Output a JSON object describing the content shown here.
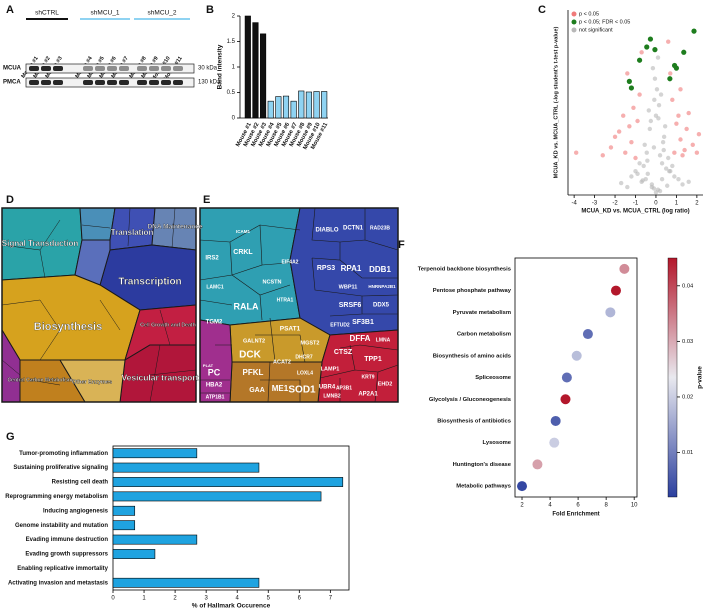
{
  "blot": {
    "panel_label": "A",
    "groups": [
      {
        "name": "shCTRL",
        "color": "#111111"
      },
      {
        "name": "shMCU_1",
        "color": "#8fd3f2"
      },
      {
        "name": "shMCU_2",
        "color": "#8fd3f2"
      }
    ],
    "lanes": [
      "Mouse #1",
      "Mouse #2",
      "Mouse #3",
      "Mouse #4",
      "Mouse #5",
      "Mouse #6",
      "Mouse #7",
      "Mouse #8",
      "Mouse #9",
      "Mouse #10",
      "Mouse #11"
    ],
    "rows": [
      {
        "name": "MCUA",
        "marker": "30 kDa"
      },
      {
        "name": "PMCA",
        "marker": "130 kDa"
      }
    ]
  },
  "pathway_map": {
    "panel_label": "D",
    "labels": [
      "Signal Transduction",
      "Translation",
      "DNA Maintenance",
      "Transcription",
      "Biosynthesis",
      "Cell Growth and Death",
      "Vesicular transport",
      "Central Carbon Metabolism",
      "Other Enzymes"
    ]
  },
  "protein_map": {
    "panel_label": "E",
    "labels": [
      "IRS2",
      "CRKL",
      "LAMC1",
      "RALA",
      "NCSTN",
      "ICAM1",
      "TGM2",
      "HTRA1",
      "EIF4A2",
      "DIABLO",
      "DCTN1",
      "RAD23B",
      "RPS3",
      "RPA1",
      "DDB1",
      "WBP11",
      "HNRNPA2B1",
      "SRSF6",
      "DDX5",
      "SF3B1",
      "EFTUD2",
      "DFFA",
      "LMNA",
      "CTSZ",
      "TPP1",
      "LAMP1",
      "UBR4",
      "AP3B1",
      "KRT9",
      "EHD2",
      "AP2A1",
      "LMNB2",
      "MGST2",
      "PSAT1",
      "DCK",
      "PC",
      "PFKL",
      "GAA",
      "ME1",
      "SOD1",
      "LOXL4",
      "DHCR7",
      "ACAT2",
      "GALNT2",
      "HBA2",
      "ATP1B1",
      "PLAT"
    ]
  },
  "chart_data": [
    {
      "type": "bar",
      "panel_label": "B",
      "y_label": "Band intensity",
      "categories": [
        "Mouse #1",
        "Mouse #2",
        "Mouse #3",
        "Mouse #4",
        "Mouse #5",
        "Mouse #6",
        "Mouse #7",
        "Mouse #8",
        "Mouse #9",
        "Mouse #10",
        "Mouse #11"
      ],
      "values": [
        2.0,
        1.87,
        1.65,
        0.33,
        0.42,
        0.43,
        0.33,
        0.53,
        0.51,
        0.52,
        0.52
      ],
      "colors": [
        "#111111",
        "#111111",
        "#111111",
        "#8fd3f2",
        "#8fd3f2",
        "#8fd3f2",
        "#8fd3f2",
        "#8fd3f2",
        "#8fd3f2",
        "#8fd3f2",
        "#8fd3f2"
      ],
      "ylim": [
        0,
        2
      ],
      "yticks": [
        0,
        0.5,
        1,
        1.5,
        2
      ]
    },
    {
      "type": "scatter",
      "panel_label": "C",
      "x_label": "MCUA_KD vs. MCUA_CTRL (log ratio)",
      "y_label": "MCUA_KD vs. MCUA_CTRL (-log student's t-test p-value)",
      "legend": "upper left",
      "xlim": [
        -4.3,
        2.3
      ],
      "xticks": [
        -4,
        -3,
        -2,
        -1,
        0,
        1,
        2
      ],
      "ylim": [
        0,
        7
      ],
      "series": [
        {
          "name": "p < 0.05",
          "color": "#f07a7a",
          "x": [
            -1.5,
            -1.2,
            -1.8,
            -2.2,
            -0.9,
            -1.1,
            -2.6,
            -1.4,
            -0.7,
            -3.9,
            -1.0,
            -1.6,
            -2.0,
            -0.8,
            -1.3,
            0.9,
            1.2,
            1.5,
            1.1,
            0.8,
            1.8,
            2.1,
            1.3,
            0.7,
            1.0,
            1.6,
            1.4,
            0.6,
            2.0,
            1.2
          ],
          "values": [
            1.6,
            2.0,
            2.4,
            1.8,
            2.8,
            3.3,
            1.5,
            4.6,
            5.4,
            1.6,
            1.4,
            3.0,
            2.2,
            3.8,
            2.6,
            1.6,
            2.1,
            2.5,
            3.0,
            3.6,
            1.9,
            2.3,
            1.5,
            4.6,
            2.7,
            3.1,
            1.7,
            5.8,
            1.6,
            4.0
          ]
        },
        {
          "name": "p < 0.05; FDR < 0.05",
          "color": "#1e7d1e",
          "x": [
            1.86,
            1.36,
            0.91,
            1.0,
            0.68,
            -0.27,
            -0.45,
            -0.05,
            -1.3,
            -1.2,
            -0.8
          ],
          "values": [
            6.2,
            5.4,
            4.9,
            4.8,
            4.4,
            5.9,
            5.6,
            5.5,
            4.3,
            4.05,
            5.1
          ]
        },
        {
          "name": "not significant",
          "color": "#b8b8b8",
          "x": [
            0.1,
            -0.2,
            0.3,
            -0.4,
            0.5,
            -0.6,
            0.2,
            -0.1,
            0.7,
            -0.8,
            0.4,
            -0.3,
            0.9,
            -1.0,
            0.0,
            0.15,
            -0.25,
            0.35,
            -0.45,
            0.6,
            -0.7,
            1.1,
            -1.2,
            0.05,
            -0.05,
            0.25,
            -0.35,
            0.45,
            -0.55,
            0.8,
            -0.9,
            1.3,
            -1.4,
            0.1,
            -0.15,
            0.3,
            -0.5,
            0.65,
            -0.2,
            0.0,
            0.2,
            -0.1,
            1.6,
            -1.7,
            0.55,
            -0.65,
            0.12,
            -0.08,
            0.38,
            -0.42
          ],
          "values": [
            0.2,
            0.4,
            0.6,
            0.8,
            1.0,
            1.1,
            1.5,
            1.8,
            0.9,
            1.2,
            2.2,
            2.5,
            0.7,
            0.9,
            3.0,
            3.4,
            2.8,
            2.0,
            1.6,
            1.4,
            0.5,
            0.6,
            0.7,
            4.0,
            4.4,
            3.8,
            3.2,
            2.6,
            1.9,
            1.1,
            0.8,
            0.4,
            0.3,
            5.2,
            4.8,
            1.2,
            0.6,
            0.9,
            0.3,
            0.1,
            0.15,
            0.25,
            0.5,
            0.45,
            0.35,
            0.55,
            2.9,
            3.6,
            1.7,
            1.3
          ]
        }
      ]
    },
    {
      "type": "dot",
      "panel_label": "F",
      "x_label": "Fold Enrichment",
      "categories": [
        "Terpenoid backbone biosynthesis",
        "Pentose phosphate pathway",
        "Pyruvate metabolism",
        "Carbon metabolism",
        "Biosynthesis of amino acids",
        "Spliceosome",
        "Glycolysis / Gluconeogenesis",
        "Biosynthesis of antibiotics",
        "Lysosome",
        "Huntington's disease",
        "Metabolic pathways"
      ],
      "values": [
        9.3,
        8.7,
        8.3,
        6.7,
        5.9,
        5.2,
        5.1,
        4.4,
        4.3,
        3.1,
        2.0
      ],
      "p_values": [
        0.033,
        0.045,
        0.017,
        0.008,
        0.018,
        0.008,
        0.046,
        0.006,
        0.02,
        0.031,
        0.003
      ],
      "xlim": [
        1.5,
        10.2
      ],
      "xticks": [
        2,
        4,
        6,
        8,
        10
      ],
      "colorbar": {
        "label": "p-value",
        "lim": [
          0.002,
          0.045
        ],
        "ticks": [
          0.01,
          0.02,
          0.03,
          0.04
        ],
        "colors": [
          "#2b3f9e",
          "#e9e9ef",
          "#b3172b"
        ]
      }
    },
    {
      "type": "hbar",
      "panel_label": "G",
      "x_label": "% of Hallmark Occurence",
      "color": "#1fa3e0",
      "categories": [
        "Tumor-promoting inflammation",
        "Sustaining proliferative signaling",
        "Resisting cell death",
        "Reprogramming energy metabolism",
        "Inducing angiogenesis",
        "Genome instability and mutation",
        "Evading immune destruction",
        "Evading growth suppressors",
        "Enabling replicative immortality",
        "Activating invasion and metastasis"
      ],
      "values": [
        2.7,
        4.7,
        7.4,
        6.7,
        0.7,
        0.7,
        2.7,
        1.35,
        0,
        4.7
      ],
      "xlim": [
        0,
        7.6
      ],
      "xticks": [
        0,
        1,
        2,
        3,
        4,
        5,
        6,
        7
      ]
    }
  ]
}
